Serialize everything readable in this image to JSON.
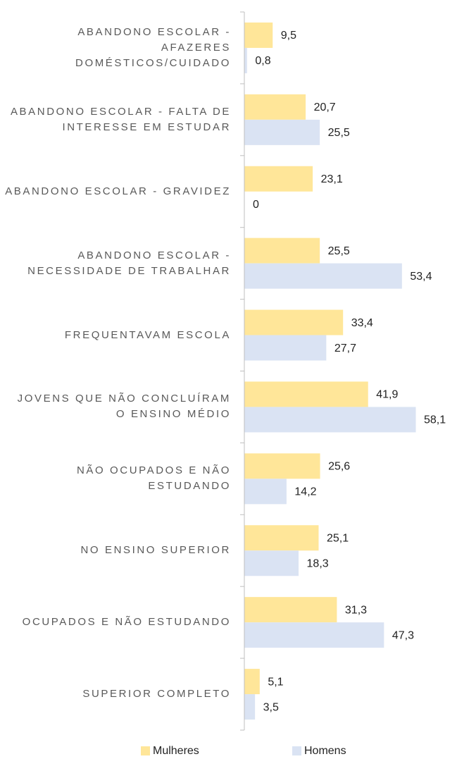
{
  "chart_data": {
    "type": "bar",
    "orientation": "horizontal",
    "categories": [
      "ABANDONO ESCOLAR - AFAZERES DOMÉSTICOS/CUIDADO",
      "ABANDONO ESCOLAR - FALTA DE INTERESSE EM ESTUDAR",
      "ABANDONO ESCOLAR - GRAVIDEZ",
      "ABANDONO ESCOLAR - NECESSIDADE DE TRABALHAR",
      "FREQUENTAVAM ESCOLA",
      "JOVENS QUE NÃO CONCLUÍRAM O ENSINO MÉDIO",
      "NÃO OCUPADOS E NÃO ESTUDANDO",
      "NO ENSINO SUPERIOR",
      "OCUPADOS E NÃO ESTUDANDO",
      "SUPERIOR COMPLETO"
    ],
    "series": [
      {
        "name": "Mulheres",
        "color": "#ffe699",
        "values": [
          9.5,
          20.7,
          23.1,
          25.5,
          33.4,
          41.9,
          25.6,
          25.1,
          31.3,
          5.1
        ],
        "value_labels": [
          "9,5",
          "20,7",
          "23,1",
          "25,5",
          "33,4",
          "41,9",
          "25,6",
          "25,1",
          "31,3",
          "5,1"
        ]
      },
      {
        "name": "Homens",
        "color": "#dae3f3",
        "values": [
          0.8,
          25.5,
          0,
          53.4,
          27.7,
          58.1,
          14.2,
          18.3,
          47.3,
          3.5
        ],
        "value_labels": [
          "0,8",
          "25,5",
          "0",
          "53,4",
          "27,7",
          "58,1",
          "14,2",
          "18,3",
          "47,3",
          "3,5"
        ]
      }
    ],
    "legend": "bottom"
  }
}
